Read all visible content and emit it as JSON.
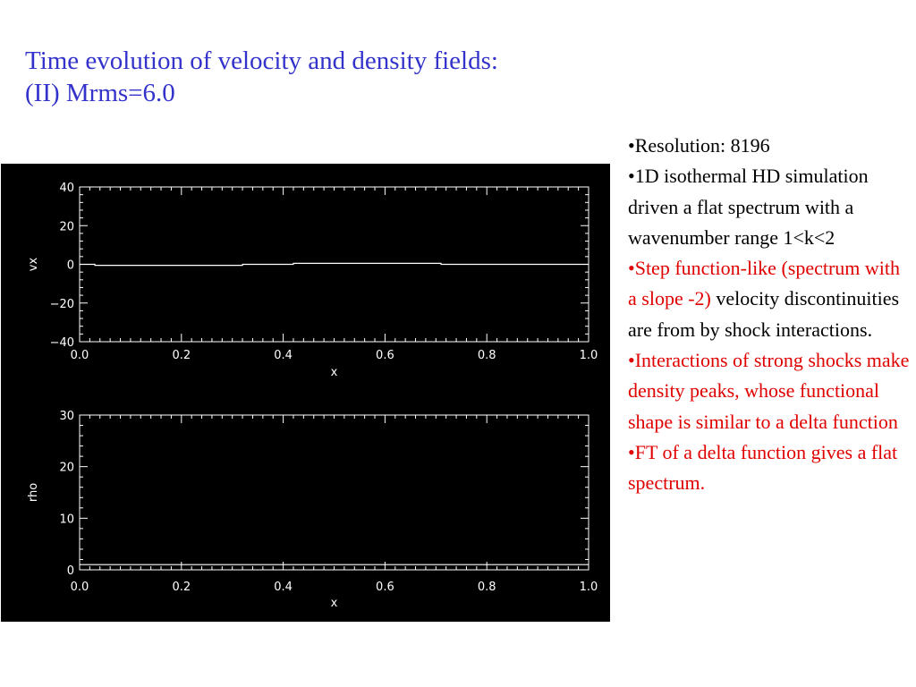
{
  "title": {
    "line1": "Time evolution of velocity and density fields:",
    "line2": "(II) Mrms=6.0"
  },
  "notes": {
    "resolution": "•Resolution: 8196",
    "simulation": "•1D isothermal HD simulation driven a flat spectrum with a wavenumber range 1<k<2",
    "step_red": "•Step function-like (spectrum with a slope -2)",
    "step_black": " velocity discontinuities are from by shock interactions.",
    "interactions": "•Interactions of strong shocks make density peaks, whose functional shape is similar to a delta function",
    "ft": "•FT of a delta function gives a  flat spectrum."
  },
  "colors": {
    "title": "#3333cc",
    "highlight": "#e00000",
    "plot_background": "#000000",
    "plot_foreground": "#ffffff"
  },
  "chart_data": [
    {
      "type": "line",
      "title": "",
      "xlabel": "x",
      "ylabel": "vx",
      "xlim": [
        0.0,
        1.0
      ],
      "ylim": [
        -40,
        40
      ],
      "x_ticks": [
        "0.0",
        "0.2",
        "0.4",
        "0.6",
        "0.8",
        "1.0"
      ],
      "y_ticks": [
        "40",
        "20",
        "0",
        "−20",
        "−40"
      ],
      "x_tick_values": [
        0.0,
        0.2,
        0.4,
        0.6,
        0.8,
        1.0
      ],
      "y_tick_values": [
        40,
        20,
        0,
        -20,
        -40
      ],
      "grid": false,
      "series": [
        {
          "x": [
            0.0,
            0.03,
            0.03,
            0.32,
            0.32,
            0.42,
            0.42,
            0.71,
            0.71,
            1.0
          ],
          "y": [
            0.0,
            0.0,
            -0.5,
            -0.5,
            0.0,
            0.0,
            0.5,
            0.5,
            0.0,
            0.0
          ]
        }
      ]
    },
    {
      "type": "line",
      "title": "",
      "xlabel": "x",
      "ylabel": "rho",
      "xlim": [
        0.0,
        1.0
      ],
      "ylim": [
        0,
        30
      ],
      "x_ticks": [
        "0.0",
        "0.2",
        "0.4",
        "0.6",
        "0.8",
        "1.0"
      ],
      "y_ticks": [
        "30",
        "20",
        "10",
        "0"
      ],
      "x_tick_values": [
        0.0,
        0.2,
        0.4,
        0.6,
        0.8,
        1.0
      ],
      "y_tick_values": [
        30,
        20,
        10,
        0
      ],
      "grid": false,
      "series": [
        {
          "x": [
            0.0,
            1.0
          ],
          "y": [
            1.0,
            1.0
          ]
        }
      ]
    }
  ]
}
